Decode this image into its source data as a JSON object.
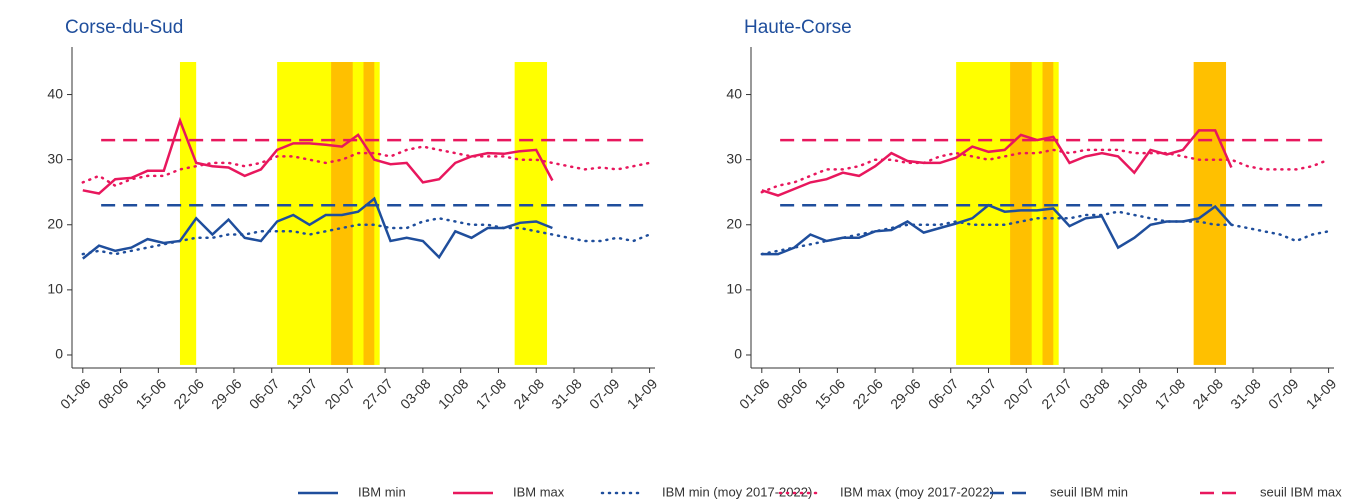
{
  "chart_data": [
    {
      "type": "line",
      "title": "Corse-du-Sud",
      "x": [
        "01-06",
        "04-06",
        "07-06",
        "10-06",
        "13-06",
        "16-06",
        "19-06",
        "22-06",
        "25-06",
        "28-06",
        "01-07",
        "04-07",
        "07-07",
        "10-07",
        "13-07",
        "16-07",
        "19-07",
        "22-07",
        "25-07",
        "28-07",
        "31-07",
        "03-08",
        "06-08",
        "09-08",
        "12-08",
        "15-08",
        "18-08",
        "21-08",
        "24-08",
        "27-08",
        "30-08",
        "02-09",
        "05-09",
        "08-09",
        "11-09",
        "14-09"
      ],
      "xlim": [
        "30-05",
        "15-09"
      ],
      "xticks": [
        "01-06",
        "08-06",
        "15-06",
        "22-06",
        "29-06",
        "06-07",
        "13-07",
        "20-07",
        "27-07",
        "03-08",
        "10-08",
        "17-08",
        "24-08",
        "31-08",
        "07-09",
        "14-09"
      ],
      "ylim": [
        -2,
        45
      ],
      "yticks": [
        0,
        10,
        20,
        30,
        40
      ],
      "bands": [
        {
          "start": "19-06",
          "end": "22-06",
          "color": "#ffff00"
        },
        {
          "start": "07-07",
          "end": "26-07",
          "color": "#ffff00"
        },
        {
          "start": "17-07",
          "end": "21-07",
          "color": "#ffc000"
        },
        {
          "start": "23-07",
          "end": "25-07",
          "color": "#ffc000"
        },
        {
          "start": "20-08",
          "end": "26-08",
          "color": "#ffff00"
        }
      ],
      "series": [
        {
          "name": "IBM min",
          "color": "#1f4e9c",
          "style": "solid",
          "values": [
            14.8,
            16.8,
            16,
            16.5,
            17.8,
            17.2,
            17.5,
            21,
            18.5,
            20.8,
            18,
            17.5,
            20.5,
            21.5,
            20,
            21.5,
            21.5,
            22,
            24,
            17.5,
            18,
            17.5,
            15,
            19,
            18,
            19.5,
            19.5,
            20.3,
            20.5,
            19.5,
            null,
            null,
            null,
            null,
            null,
            null
          ]
        },
        {
          "name": "IBM max",
          "color": "#e8175d",
          "style": "solid",
          "values": [
            25.3,
            24.8,
            27,
            27.2,
            28.3,
            28.3,
            36,
            29.5,
            29,
            28.8,
            27.5,
            28.5,
            31.5,
            32.5,
            32.5,
            32.3,
            32,
            33.8,
            30,
            29.3,
            29.5,
            26.5,
            27,
            29.5,
            30.5,
            31,
            30.9,
            31.3,
            31.5,
            26.8,
            null,
            null,
            null,
            null,
            null,
            null
          ]
        },
        {
          "name": "IBM min (moy 2017-2022)",
          "color": "#1f4e9c",
          "style": "dotted",
          "values": [
            15.5,
            16,
            15.5,
            16,
            16.5,
            17,
            17.5,
            18,
            18,
            18.5,
            18.5,
            19,
            19,
            19,
            18.5,
            19,
            19.5,
            20,
            20,
            19.5,
            19.5,
            20.5,
            21,
            20.5,
            20,
            20,
            19.5,
            19.5,
            19,
            18.5,
            18,
            17.5,
            17.5,
            18,
            17.5,
            18.5
          ]
        },
        {
          "name": "IBM max (moy 2017-2022)",
          "color": "#e8175d",
          "style": "dotted",
          "values": [
            26.5,
            27.5,
            26,
            27,
            27.5,
            27.5,
            28.5,
            29,
            29.5,
            29.5,
            29,
            29.5,
            30.5,
            30.5,
            30,
            29.5,
            30,
            31,
            31,
            30.5,
            31.5,
            32,
            31.5,
            31,
            30.5,
            30.5,
            30.5,
            30,
            30,
            29.5,
            29,
            28.5,
            28.8,
            28.5,
            29,
            29.5
          ]
        },
        {
          "name": "seuil IBM min",
          "color": "#1f4e9c",
          "style": "dashed",
          "value": 23
        },
        {
          "name": "seuil IBM max",
          "color": "#e8175d",
          "style": "dashed",
          "value": 33
        }
      ]
    },
    {
      "type": "line",
      "title": "Haute-Corse",
      "x": [
        "01-06",
        "04-06",
        "07-06",
        "10-06",
        "13-06",
        "16-06",
        "19-06",
        "22-06",
        "25-06",
        "28-06",
        "01-07",
        "04-07",
        "07-07",
        "10-07",
        "13-07",
        "16-07",
        "19-07",
        "22-07",
        "25-07",
        "28-07",
        "31-07",
        "03-08",
        "06-08",
        "09-08",
        "12-08",
        "15-08",
        "18-08",
        "21-08",
        "24-08",
        "27-08",
        "30-08",
        "02-09",
        "05-09",
        "08-09",
        "11-09",
        "14-09"
      ],
      "xlim": [
        "30-05",
        "15-09"
      ],
      "xticks": [
        "01-06",
        "08-06",
        "15-06",
        "22-06",
        "29-06",
        "06-07",
        "13-07",
        "20-07",
        "27-07",
        "03-08",
        "10-08",
        "17-08",
        "24-08",
        "31-08",
        "07-09",
        "14-09"
      ],
      "ylim": [
        -2,
        45
      ],
      "yticks": [
        0,
        10,
        20,
        30,
        40
      ],
      "bands": [
        {
          "start": "07-07",
          "end": "26-07",
          "color": "#ffff00"
        },
        {
          "start": "17-07",
          "end": "21-07",
          "color": "#ffc000"
        },
        {
          "start": "23-07",
          "end": "25-07",
          "color": "#ffc000"
        },
        {
          "start": "20-08",
          "end": "26-08",
          "color": "#ffc000"
        }
      ],
      "series": [
        {
          "color": "#1f4e9c",
          "style": "solid",
          "values": [
            15.5,
            15.5,
            16.5,
            18.5,
            17.5,
            18,
            18,
            19,
            19.2,
            20.5,
            18.8,
            19.5,
            20.2,
            21,
            23,
            22,
            22.2,
            22.2,
            22.5,
            19.8,
            21,
            21.3,
            16.5,
            18,
            20,
            20.5,
            20.5,
            21,
            22.8,
            20,
            null,
            null,
            null,
            null,
            null,
            null
          ]
        },
        {
          "color": "#e8175d",
          "style": "solid",
          "values": [
            25.3,
            24.5,
            25.5,
            26.5,
            27,
            28,
            27.5,
            29,
            31,
            29.8,
            29.5,
            29.5,
            30.3,
            32,
            31.2,
            31.5,
            33.8,
            33,
            33.5,
            29.5,
            30.5,
            31,
            30.5,
            28,
            31.5,
            30.8,
            31.5,
            34.5,
            34.5,
            28.8,
            null,
            null,
            null,
            null,
            null,
            null
          ]
        },
        {
          "color": "#1f4e9c",
          "style": "dotted",
          "values": [
            15.5,
            16,
            16.5,
            17,
            17.5,
            18,
            18.5,
            19,
            19.5,
            20,
            20,
            20,
            20.5,
            20,
            20,
            20,
            20.5,
            21,
            21,
            21,
            21.5,
            21.5,
            22,
            21.5,
            21,
            20.5,
            20.5,
            20.5,
            20,
            20,
            19.5,
            19,
            18.5,
            17.5,
            18.5,
            19
          ]
        },
        {
          "color": "#e8175d",
          "style": "dotted",
          "values": [
            25,
            26,
            26.5,
            27.5,
            28.5,
            28.5,
            29,
            30,
            30,
            29.5,
            29.5,
            30.5,
            31,
            30.5,
            30,
            30.5,
            31,
            31,
            31.5,
            31,
            31.5,
            31.5,
            31.5,
            31,
            31,
            31,
            30.5,
            30,
            30,
            30,
            29,
            28.5,
            28.5,
            28.5,
            29,
            30
          ]
        },
        {
          "color": "#1f4e9c",
          "style": "dashed",
          "value": 23
        },
        {
          "color": "#e8175d",
          "style": "dashed",
          "value": 33
        }
      ]
    }
  ]
}
